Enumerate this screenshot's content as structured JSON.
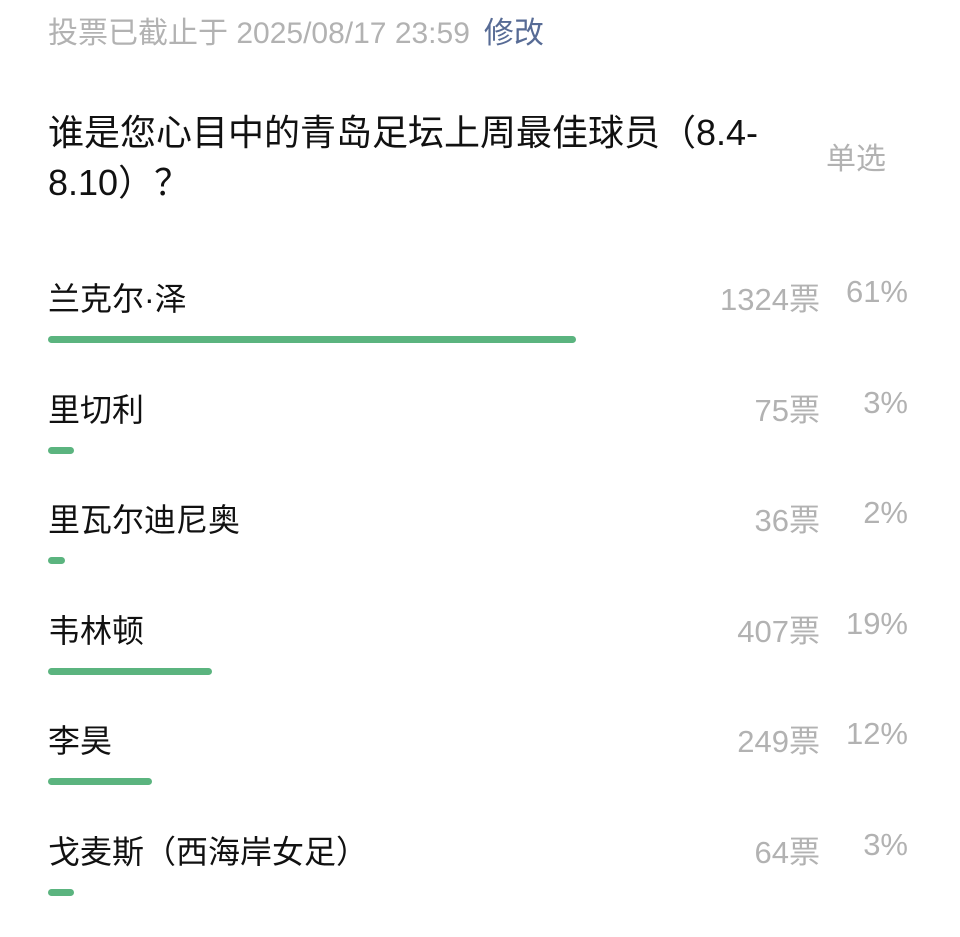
{
  "header": {
    "status": "投票已截止于 2025/08/17 23:59",
    "edit_label": "修改"
  },
  "question": {
    "title": "谁是您心目中的青岛足坛上周最佳球员（8.4-8.10）？",
    "mode": "单选"
  },
  "colors": {
    "bar": "#5bb47f",
    "link": "#576b95",
    "muted": "#b2b2b2"
  },
  "options": [
    {
      "label": "兰克尔·泽",
      "votes": "1324票",
      "percent": "61%",
      "value": 61
    },
    {
      "label": "里切利",
      "votes": "75票",
      "percent": "3%",
      "value": 3
    },
    {
      "label": "里瓦尔迪尼奥",
      "votes": "36票",
      "percent": "2%",
      "value": 2
    },
    {
      "label": "韦林顿",
      "votes": "407票",
      "percent": "19%",
      "value": 19
    },
    {
      "label": "李昊",
      "votes": "249票",
      "percent": "12%",
      "value": 12
    },
    {
      "label": "戈麦斯（西海岸女足）",
      "votes": "64票",
      "percent": "3%",
      "value": 3
    }
  ]
}
